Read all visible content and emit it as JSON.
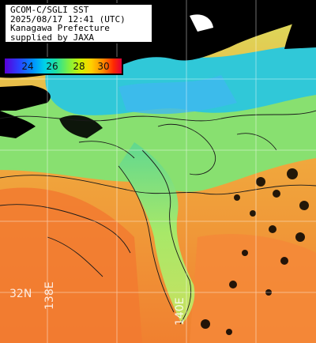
{
  "caption": {
    "line1": "GCOM-C/SGLI SST",
    "line2": "2025/08/17 12:41 (UTC)",
    "line3": "Kanagawa Prefecture",
    "line4": "supplied by JAXA"
  },
  "legend": {
    "labels": [
      "24",
      "26",
      "28",
      "30"
    ]
  },
  "grid_labels": {
    "lat_32": "32N",
    "lon_138": "138E",
    "lon_140": "140E"
  },
  "colors": {
    "land_cloud": "#000000",
    "cool_water": "#30c8d8",
    "mid_water": "#80e070",
    "warm_water": "#f2a040",
    "hot_water": "#f07830",
    "grid": "#ffffff"
  }
}
